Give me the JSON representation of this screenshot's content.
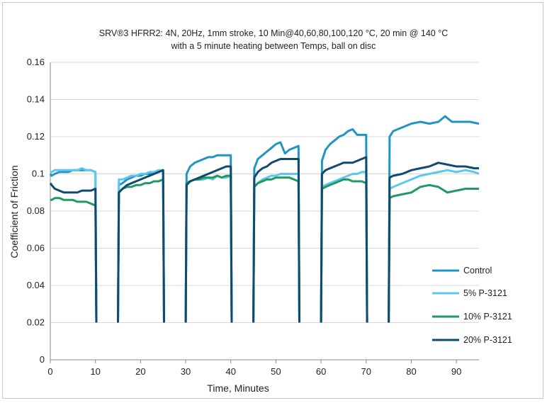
{
  "chart_data": {
    "type": "line",
    "title_line1": "SRV®3 HFRR2: 4N, 20Hz, 1mm stroke, 10 Min@40,60,80,100,120 °C, 20 min @ 140 °C",
    "title_line2": "with a 5 minute heating between Temps, ball on disc",
    "xlabel": "Time, Minutes",
    "ylabel": "Coefficient of Friction",
    "xlim": [
      0,
      95
    ],
    "ylim": [
      0,
      0.16
    ],
    "xticks": [
      "0",
      "10",
      "20",
      "30",
      "40",
      "50",
      "60",
      "70",
      "80",
      "90"
    ],
    "yticks": [
      "0",
      "0.02",
      "0.04",
      "0.06",
      "0.08",
      "0.1",
      "0.12",
      "0.14",
      "0.16"
    ],
    "grid": "horizontal",
    "legend_position": "right",
    "series": [
      {
        "name": "Control",
        "color": "#1f96c1",
        "segments": [
          {
            "x": [
              0,
              0.3,
              1,
              2,
              3,
              4,
              5,
              6,
              7,
              8,
              9,
              10,
              10.2
            ],
            "y": [
              0.1,
              0.099,
              0.1,
              0.101,
              0.101,
              0.101,
              0.102,
              0.102,
              0.102,
              0.102,
              0.102,
              0.101,
              0.02
            ]
          },
          {
            "x": [
              15,
              15.2,
              16,
              17,
              18,
              19,
              20,
              21,
              22,
              23,
              24,
              25,
              25.2
            ],
            "y": [
              0.02,
              0.094,
              0.095,
              0.097,
              0.098,
              0.099,
              0.099,
              0.1,
              0.1,
              0.101,
              0.101,
              0.102,
              0.02
            ]
          },
          {
            "x": [
              30,
              30.2,
              31,
              32,
              33,
              34,
              35,
              36,
              37,
              38,
              39,
              40,
              40.2
            ],
            "y": [
              0.02,
              0.1,
              0.104,
              0.106,
              0.107,
              0.108,
              0.109,
              0.109,
              0.11,
              0.11,
              0.11,
              0.11,
              0.02
            ]
          },
          {
            "x": [
              45,
              45.2,
              46,
              47,
              48,
              49,
              50,
              51,
              52,
              53,
              54,
              55,
              55.2
            ],
            "y": [
              0.02,
              0.103,
              0.108,
              0.11,
              0.112,
              0.114,
              0.116,
              0.117,
              0.111,
              0.113,
              0.114,
              0.115,
              0.02
            ]
          },
          {
            "x": [
              60,
              60.2,
              61,
              62,
              63,
              64,
              65,
              66,
              67,
              68,
              69,
              70,
              70.2
            ],
            "y": [
              0.02,
              0.107,
              0.113,
              0.116,
              0.118,
              0.12,
              0.121,
              0.123,
              0.124,
              0.121,
              0.121,
              0.121,
              0.02
            ]
          },
          {
            "x": [
              75,
              75.2,
              76,
              78,
              80,
              82,
              84,
              86,
              87.5,
              89,
              91,
              93,
              95
            ],
            "y": [
              0.02,
              0.12,
              0.123,
              0.125,
              0.127,
              0.128,
              0.127,
              0.128,
              0.131,
              0.128,
              0.128,
              0.128,
              0.127
            ]
          }
        ]
      },
      {
        "name": "5% P-3121",
        "color": "#5bc8f0",
        "segments": [
          {
            "x": [
              0,
              0.3,
              1,
              2,
              3,
              4,
              5,
              6,
              7,
              8,
              9,
              10,
              10.2
            ],
            "y": [
              0.101,
              0.101,
              0.102,
              0.102,
              0.102,
              0.102,
              0.102,
              0.102,
              0.103,
              0.102,
              0.102,
              0.101,
              0.02
            ]
          },
          {
            "x": [
              15,
              15.2,
              16,
              17,
              18,
              19,
              20,
              21,
              22,
              23,
              24,
              25,
              25.2
            ],
            "y": [
              0.02,
              0.097,
              0.097,
              0.098,
              0.099,
              0.099,
              0.1,
              0.1,
              0.101,
              0.101,
              0.102,
              0.102,
              0.02
            ]
          },
          {
            "x": [
              30,
              30.2,
              31,
              32,
              33,
              34,
              35,
              36,
              37,
              38,
              39,
              40,
              40.2
            ],
            "y": [
              0.02,
              0.095,
              0.096,
              0.097,
              0.097,
              0.097,
              0.098,
              0.097,
              0.099,
              0.098,
              0.098,
              0.099,
              0.02
            ]
          },
          {
            "x": [
              45,
              45.2,
              46,
              47,
              48,
              49,
              50,
              51,
              52,
              53,
              54,
              55,
              55.2
            ],
            "y": [
              0.02,
              0.093,
              0.095,
              0.097,
              0.098,
              0.099,
              0.099,
              0.1,
              0.1,
              0.1,
              0.1,
              0.1,
              0.02
            ]
          },
          {
            "x": [
              60,
              60.2,
              61,
              62,
              63,
              64,
              65,
              66,
              67,
              68,
              69,
              70,
              70.2
            ],
            "y": [
              0.02,
              0.093,
              0.094,
              0.095,
              0.096,
              0.097,
              0.098,
              0.099,
              0.1,
              0.1,
              0.101,
              0.101,
              0.02
            ]
          },
          {
            "x": [
              75,
              75.2,
              76,
              78,
              80,
              82,
              84,
              86,
              88,
              90,
              92,
              94,
              95
            ],
            "y": [
              0.02,
              0.092,
              0.093,
              0.095,
              0.097,
              0.099,
              0.1,
              0.101,
              0.102,
              0.101,
              0.102,
              0.101,
              0.1
            ]
          }
        ]
      },
      {
        "name": "10% P-3121",
        "color": "#1e9a62",
        "segments": [
          {
            "x": [
              0,
              0.3,
              1,
              2,
              3,
              4,
              5,
              6,
              7,
              8,
              9,
              10,
              10.2
            ],
            "y": [
              0.086,
              0.086,
              0.087,
              0.087,
              0.086,
              0.086,
              0.086,
              0.085,
              0.085,
              0.085,
              0.084,
              0.083,
              0.02
            ]
          },
          {
            "x": [
              15,
              15.2,
              16,
              17,
              18,
              19,
              20,
              21,
              22,
              23,
              24,
              25,
              25.2
            ],
            "y": [
              0.02,
              0.09,
              0.092,
              0.093,
              0.093,
              0.094,
              0.094,
              0.095,
              0.095,
              0.096,
              0.096,
              0.097,
              0.02
            ]
          },
          {
            "x": [
              30,
              30.2,
              31,
              32,
              33,
              34,
              35,
              36,
              37,
              38,
              39,
              40,
              40.2
            ],
            "y": [
              0.02,
              0.095,
              0.096,
              0.097,
              0.097,
              0.098,
              0.098,
              0.098,
              0.099,
              0.098,
              0.099,
              0.099,
              0.02
            ]
          },
          {
            "x": [
              45,
              45.2,
              46,
              47,
              48,
              49,
              50,
              51,
              52,
              53,
              54,
              55,
              55.2
            ],
            "y": [
              0.02,
              0.093,
              0.095,
              0.096,
              0.097,
              0.097,
              0.098,
              0.098,
              0.098,
              0.098,
              0.097,
              0.096,
              0.02
            ]
          },
          {
            "x": [
              60,
              60.2,
              61,
              62,
              63,
              64,
              65,
              66,
              67,
              68,
              69,
              70,
              70.2
            ],
            "y": [
              0.02,
              0.092,
              0.093,
              0.094,
              0.095,
              0.096,
              0.097,
              0.097,
              0.096,
              0.096,
              0.096,
              0.095,
              0.02
            ]
          },
          {
            "x": [
              75,
              75.2,
              76,
              78,
              80,
              82,
              84,
              86,
              88,
              90,
              92,
              94,
              95
            ],
            "y": [
              0.02,
              0.087,
              0.088,
              0.089,
              0.09,
              0.093,
              0.094,
              0.093,
              0.09,
              0.091,
              0.092,
              0.092,
              0.092
            ]
          }
        ]
      },
      {
        "name": "20% P-3121",
        "color": "#0f4b6e",
        "segments": [
          {
            "x": [
              0,
              0.3,
              1,
              2,
              3,
              4,
              5,
              6,
              7,
              8,
              9,
              10,
              10.2
            ],
            "y": [
              0.095,
              0.094,
              0.092,
              0.091,
              0.09,
              0.09,
              0.09,
              0.09,
              0.091,
              0.091,
              0.091,
              0.092,
              0.02
            ]
          },
          {
            "x": [
              15,
              15.2,
              16,
              17,
              18,
              19,
              20,
              21,
              22,
              23,
              24,
              25,
              25.2
            ],
            "y": [
              0.02,
              0.09,
              0.092,
              0.094,
              0.095,
              0.096,
              0.097,
              0.098,
              0.099,
              0.1,
              0.101,
              0.102,
              0.02
            ]
          },
          {
            "x": [
              30,
              30.2,
              31,
              32,
              33,
              34,
              35,
              36,
              37,
              38,
              39,
              40,
              40.2
            ],
            "y": [
              0.02,
              0.094,
              0.096,
              0.097,
              0.098,
              0.099,
              0.1,
              0.101,
              0.102,
              0.103,
              0.104,
              0.104,
              0.02
            ]
          },
          {
            "x": [
              45,
              45.2,
              46,
              47,
              48,
              49,
              50,
              51,
              52,
              53,
              54,
              55,
              55.2
            ],
            "y": [
              0.02,
              0.098,
              0.101,
              0.103,
              0.104,
              0.106,
              0.107,
              0.108,
              0.108,
              0.108,
              0.108,
              0.108,
              0.02
            ]
          },
          {
            "x": [
              60,
              60.2,
              61,
              62,
              63,
              64,
              65,
              66,
              67,
              68,
              69,
              70,
              70.2
            ],
            "y": [
              0.02,
              0.1,
              0.102,
              0.103,
              0.104,
              0.105,
              0.106,
              0.106,
              0.106,
              0.107,
              0.108,
              0.109,
              0.02
            ]
          },
          {
            "x": [
              75,
              75.2,
              76,
              78,
              80,
              82,
              84,
              86,
              88,
              90,
              92,
              94,
              95
            ],
            "y": [
              0.02,
              0.098,
              0.099,
              0.1,
              0.102,
              0.103,
              0.104,
              0.106,
              0.105,
              0.104,
              0.104,
              0.103,
              0.103
            ]
          }
        ]
      }
    ]
  }
}
